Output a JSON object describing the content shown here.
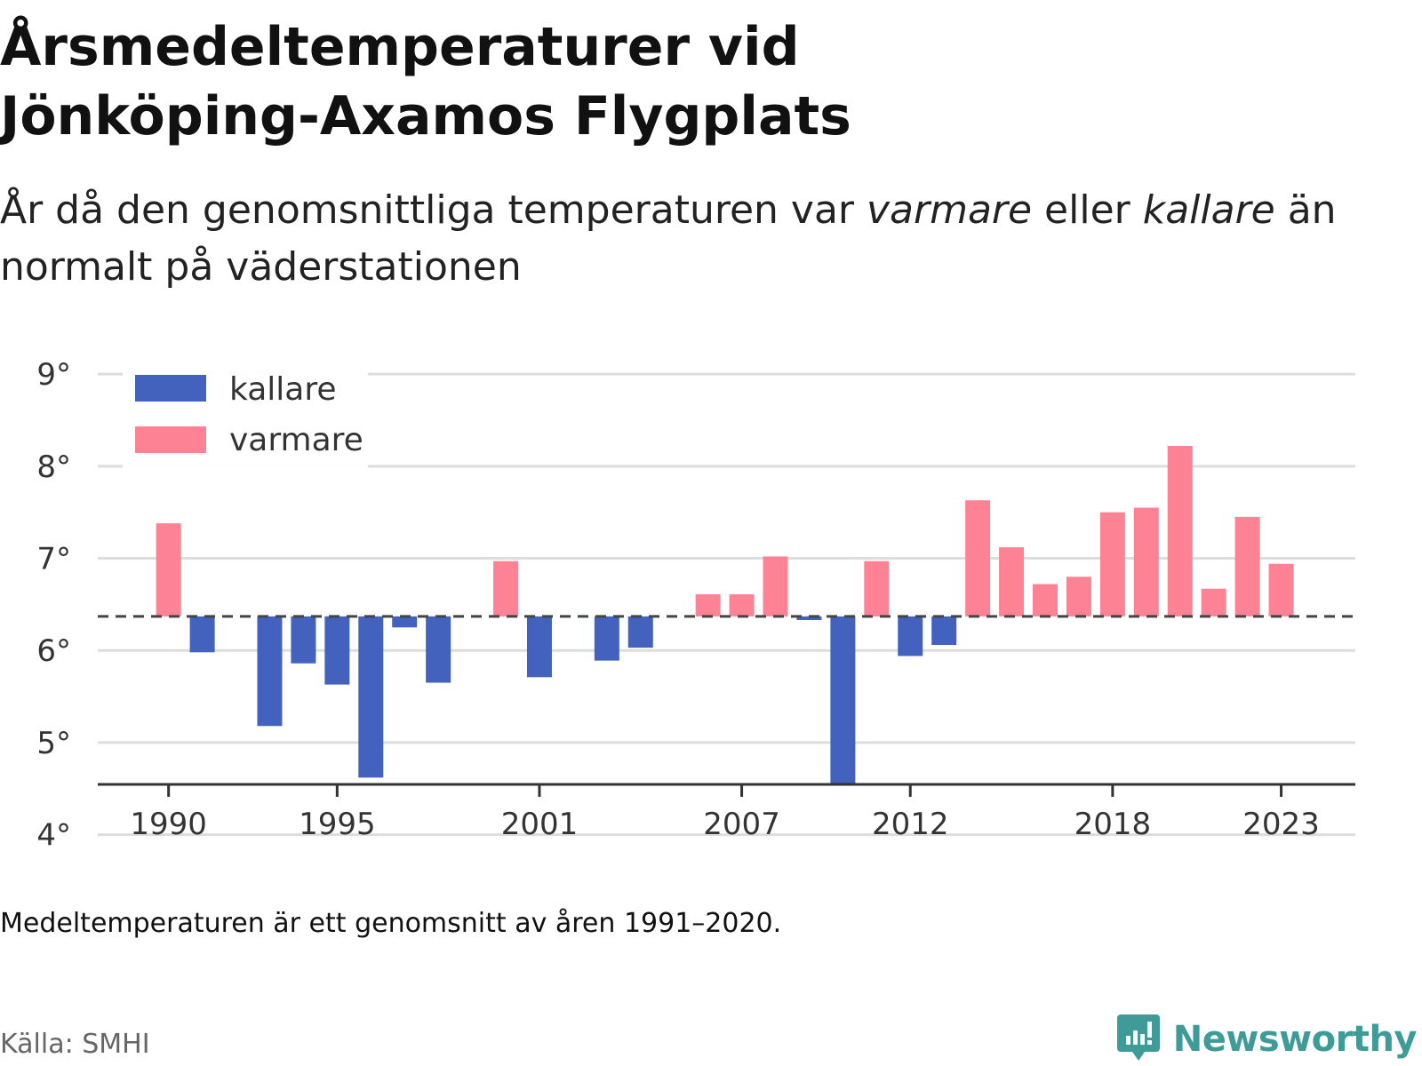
{
  "header": {
    "title_line1": "Årsmedeltemperaturer vid",
    "title_line2": "Jönköping-Axamos Flygplats",
    "subtitle_part1": "År då den genomsnittliga temperaturen var ",
    "subtitle_em1": "varmare",
    "subtitle_part2": " eller ",
    "subtitle_em2": "kallare",
    "subtitle_part3": " än normalt på väderstationen"
  },
  "footer": {
    "note": "Medeltemperaturen är ett genomsnitt av åren 1991–2020.",
    "source": "Källa: SMHI",
    "brand": "Newsworthy"
  },
  "colors": {
    "kallare": "#4262bd",
    "varmare": "#fd8394",
    "brand": "#3e9b98",
    "grid": "#dddddd",
    "baseline": "#444444"
  },
  "chart_data": {
    "type": "bar",
    "baseline": 6.37,
    "ylim": [
      3.9,
      9.3
    ],
    "yticks": [
      4,
      5,
      6,
      7,
      8,
      9
    ],
    "ytick_labels": [
      "4°",
      "5°",
      "6°",
      "7°",
      "8°",
      "9°"
    ],
    "xticks": [
      1990,
      1995,
      2001,
      2007,
      2012,
      2018,
      2023
    ],
    "xtick_labels": [
      "1990",
      "1995",
      "2001",
      "2007",
      "2012",
      "2018",
      "2023"
    ],
    "xlim": [
      1987.9,
      2025.2
    ],
    "legend": {
      "position": "top-left",
      "items": [
        {
          "key": "kallare",
          "label": "kallare"
        },
        {
          "key": "varmare",
          "label": "varmare"
        }
      ]
    },
    "years": [
      1990,
      1991,
      1992,
      1993,
      1994,
      1995,
      1996,
      1997,
      1998,
      1999,
      2000,
      2001,
      2002,
      2003,
      2004,
      2005,
      2006,
      2007,
      2008,
      2009,
      2010,
      2011,
      2012,
      2013,
      2014,
      2015,
      2016,
      2017,
      2018,
      2019,
      2020,
      2021,
      2022,
      2023
    ],
    "values": [
      7.38,
      5.98,
      null,
      5.18,
      5.86,
      5.63,
      4.62,
      6.25,
      5.65,
      null,
      6.97,
      5.71,
      null,
      5.89,
      6.03,
      null,
      6.61,
      6.61,
      7.02,
      6.33,
      4.54,
      6.97,
      5.94,
      6.06,
      7.63,
      7.12,
      6.72,
      6.8,
      7.5,
      7.55,
      8.22,
      6.67,
      7.45,
      6.94
    ]
  }
}
